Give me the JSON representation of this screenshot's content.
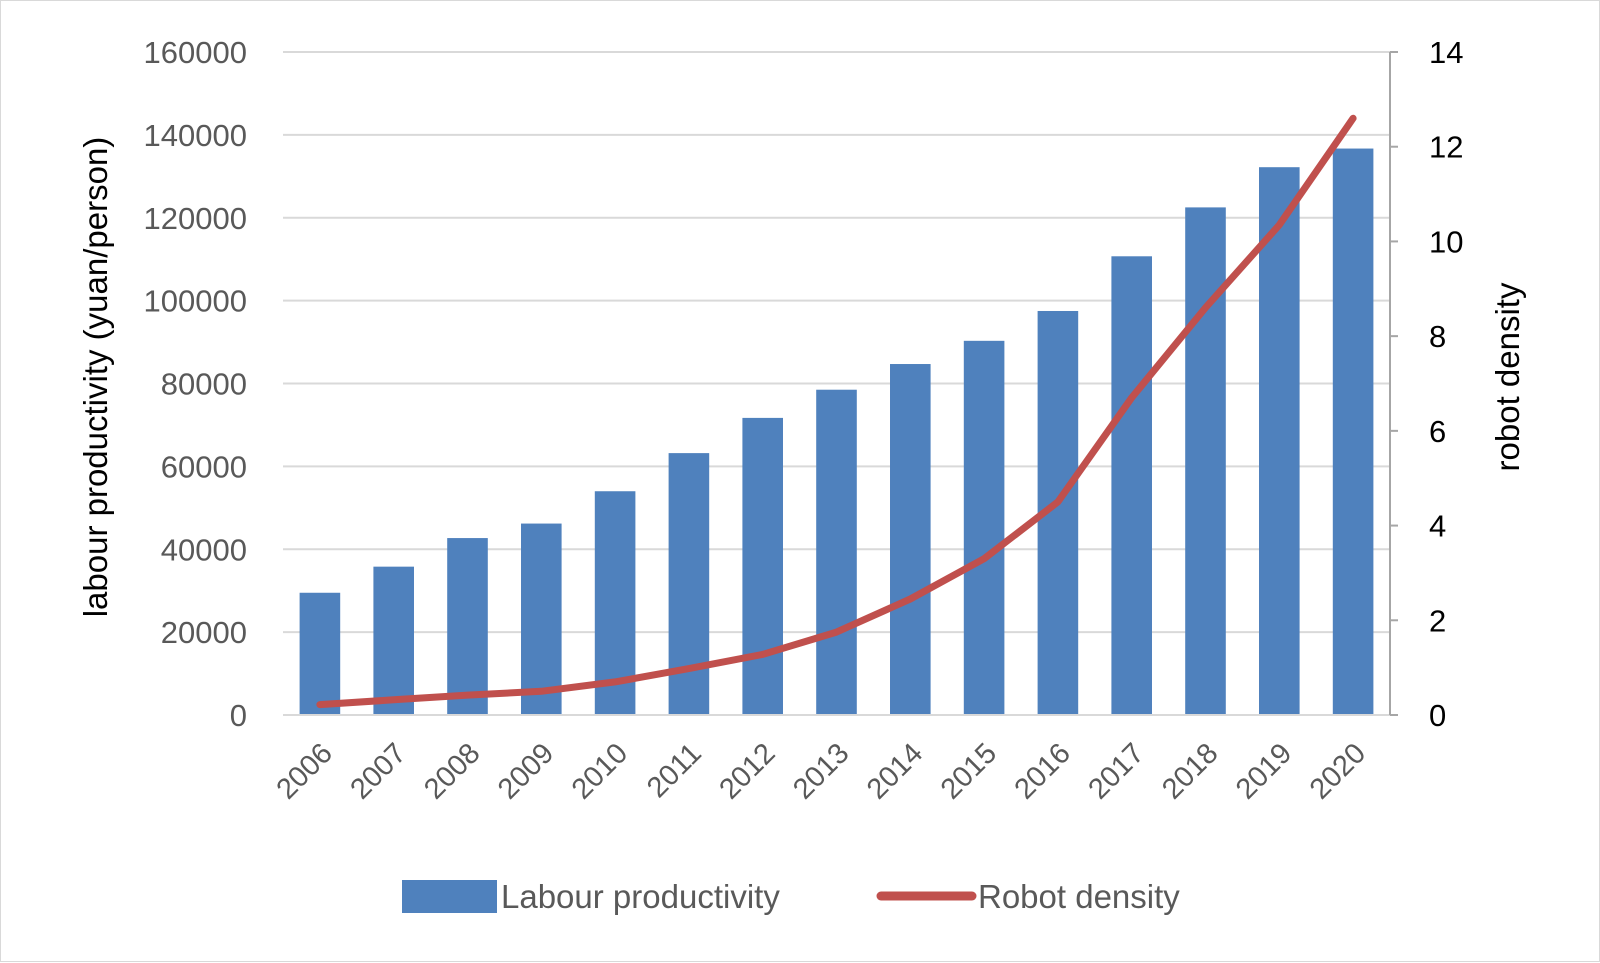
{
  "chart_data": {
    "type": "bar+line",
    "categories": [
      "2006",
      "2007",
      "2008",
      "2009",
      "2010",
      "2011",
      "2012",
      "2013",
      "2014",
      "2015",
      "2016",
      "2017",
      "2018",
      "2019",
      "2020"
    ],
    "series": [
      {
        "name": "Labour productivity",
        "type": "bar",
        "axis": "left",
        "color": "#4f81bd",
        "values": [
          29500,
          35800,
          42700,
          46200,
          54000,
          63200,
          71700,
          78500,
          84700,
          90300,
          97500,
          110700,
          122500,
          132200,
          136700
        ]
      },
      {
        "name": "Robot density",
        "type": "line",
        "axis": "right",
        "color": "#c0504d",
        "values": [
          0.22,
          0.32,
          0.42,
          0.5,
          0.7,
          0.98,
          1.28,
          1.75,
          2.45,
          3.3,
          4.5,
          6.7,
          8.6,
          10.35,
          12.6
        ]
      }
    ],
    "ylabel": "labour productivity (yuan/person)",
    "y2label": "robot density",
    "ylim": [
      0,
      160000
    ],
    "y2lim": [
      0,
      14
    ],
    "yticks": [
      "0",
      "20000",
      "40000",
      "60000",
      "80000",
      "100000",
      "120000",
      "140000",
      "160000"
    ],
    "y2ticks": [
      "0",
      "2",
      "4",
      "6",
      "8",
      "10",
      "12",
      "14"
    ],
    "grid": true,
    "legend_position": "bottom"
  }
}
